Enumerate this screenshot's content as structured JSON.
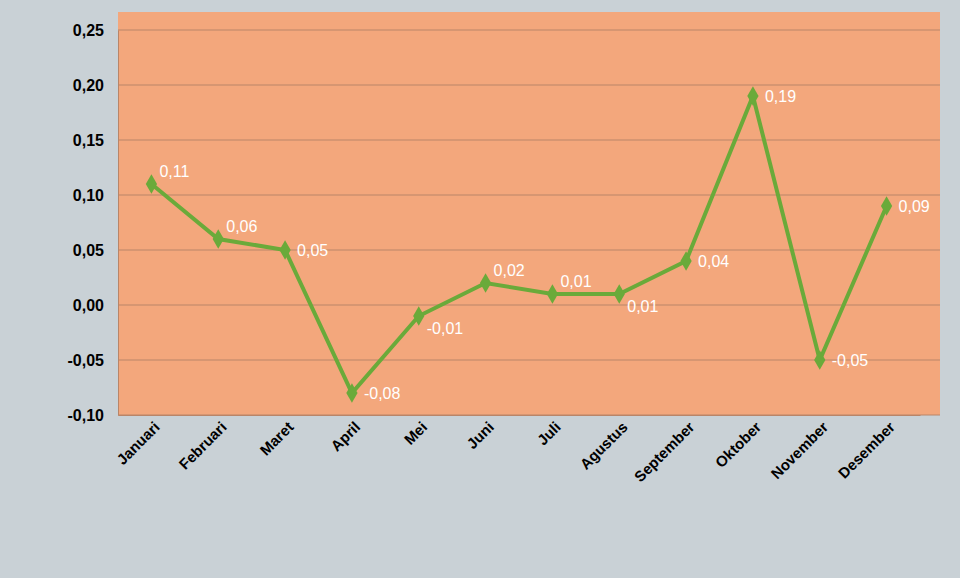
{
  "chart_data": {
    "type": "line",
    "categories": [
      "Januari",
      "Februari",
      "Maret",
      "April",
      "Mei",
      "Juni",
      "Juli",
      "Agustus",
      "September",
      "Oktober",
      "November",
      "Desember"
    ],
    "values": [
      0.11,
      0.06,
      0.05,
      -0.08,
      -0.01,
      0.02,
      0.01,
      0.01,
      0.04,
      0.19,
      -0.05,
      0.09
    ],
    "value_labels": [
      "0,11",
      "0,06",
      "0,05",
      "-0,08",
      "-0,01",
      "0,02",
      "0,01",
      "0,01",
      "0,04",
      "0,19",
      "-0,05",
      "0,09"
    ],
    "color": "#6aaa3a",
    "marker": "diamond",
    "line_style": "solid",
    "data_labels": true,
    "grid": true,
    "ylim": [
      -0.1,
      0.25
    ],
    "yticks": [
      {
        "value": -0.1,
        "label": "-0,10"
      },
      {
        "value": -0.05,
        "label": "-0,05"
      },
      {
        "value": 0,
        "label": "0,00"
      },
      {
        "value": 0.05,
        "label": "0,05"
      },
      {
        "value": 0.1,
        "label": "0,10"
      },
      {
        "value": 0.15,
        "label": "0,15"
      },
      {
        "value": 0.2,
        "label": "0,20"
      },
      {
        "value": 0.25,
        "label": "0,25"
      }
    ]
  }
}
